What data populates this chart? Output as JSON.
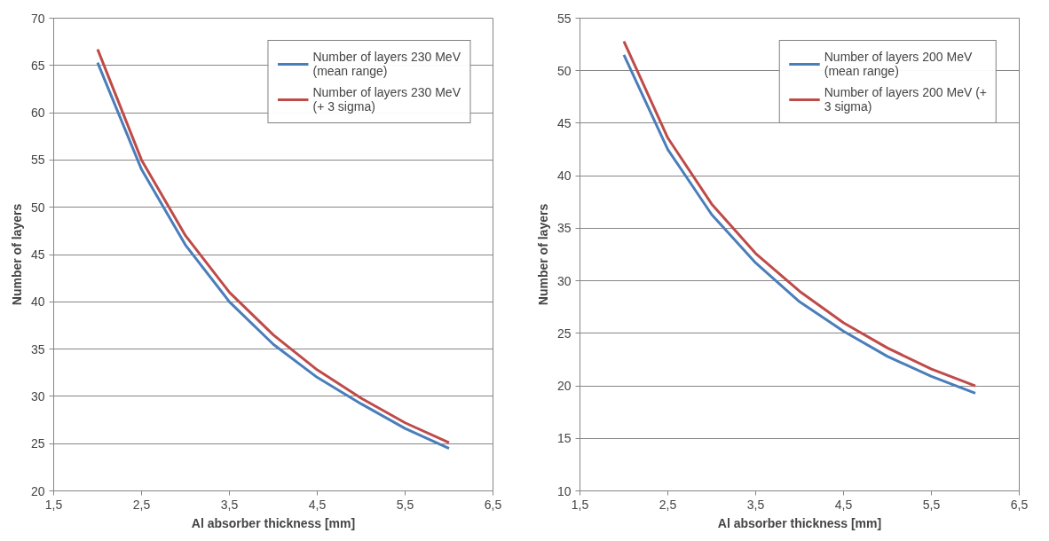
{
  "chart_data": [
    {
      "type": "line",
      "xlabel": "Al absorber thickness [mm]",
      "ylabel": "Number of layers",
      "x": [
        2,
        2.5,
        3,
        3.5,
        4,
        4.5,
        5,
        5.5,
        6
      ],
      "series": [
        {
          "name": "Number of layers 230 MeV (mean range)",
          "color": "#4a7ebb",
          "values": [
            65.3,
            54,
            46,
            40,
            35.5,
            32,
            29.2,
            26.6,
            24.5
          ]
        },
        {
          "name": "Number of layers 230 MeV (+ 3 sigma)",
          "color": "#be4b48",
          "values": [
            66.7,
            55,
            47,
            41,
            36.5,
            32.8,
            29.8,
            27.2,
            25.1
          ]
        }
      ],
      "xlim": [
        1.5,
        6.5
      ],
      "xticks": [
        {
          "value": 1.5,
          "label": "1,5"
        },
        {
          "value": 2.5,
          "label": "2,5"
        },
        {
          "value": 3.5,
          "label": "3,5"
        },
        {
          "value": 4.5,
          "label": "4,5"
        },
        {
          "value": 5.5,
          "label": "5,5"
        },
        {
          "value": 6.5,
          "label": "6,5"
        }
      ],
      "ylim": [
        20,
        70
      ],
      "yticks": [
        20,
        25,
        30,
        35,
        40,
        45,
        50,
        55,
        60,
        65,
        70
      ],
      "grid": "y",
      "legend": "top right"
    },
    {
      "type": "line",
      "xlabel": "Al absorber thickness [mm]",
      "ylabel": "Number of layers",
      "x": [
        2,
        2.5,
        3,
        3.5,
        4,
        4.5,
        5,
        5.5,
        6
      ],
      "series": [
        {
          "name": "Number of layers 200 MeV (mean range)",
          "color": "#4a7ebb",
          "values": [
            51.5,
            42.5,
            36.3,
            31.7,
            28,
            25.2,
            22.8,
            20.9,
            19.3
          ]
        },
        {
          "name": "Number of layers 200 MeV (+ 3 sigma)",
          "color": "#be4b48",
          "values": [
            52.8,
            43.6,
            37.3,
            32.6,
            29,
            26,
            23.6,
            21.6,
            20
          ]
        }
      ],
      "xlim": [
        1.5,
        6.5
      ],
      "xticks": [
        {
          "value": 1.5,
          "label": "1,5"
        },
        {
          "value": 2.5,
          "label": "2,5"
        },
        {
          "value": 3.5,
          "label": "3,5"
        },
        {
          "value": 4.5,
          "label": "4,5"
        },
        {
          "value": 5.5,
          "label": "5,5"
        },
        {
          "value": 6.5,
          "label": "6,5"
        }
      ],
      "ylim": [
        10,
        55
      ],
      "yticks": [
        10,
        15,
        20,
        25,
        30,
        35,
        40,
        45,
        50,
        55
      ],
      "grid": "y",
      "legend": "top right"
    }
  ]
}
